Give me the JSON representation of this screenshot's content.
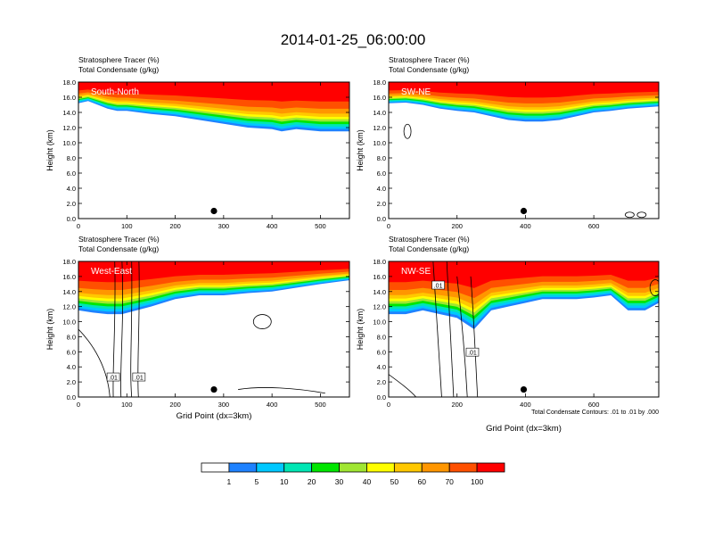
{
  "main_title": "2014-01-25_06:00:00",
  "chart_data": [
    {
      "type": "cross-section",
      "panel_label": "South-North",
      "left_titles": [
        "Stratosphere Tracer   (%)",
        "Total Condensate   (g/kg)"
      ],
      "ylabel": "Height (km)",
      "xlabel": "",
      "ylim": [
        0,
        18
      ],
      "yticks": [
        "0.0",
        "2.0",
        "4.0",
        "6.0",
        "8.0",
        "10.0",
        "12.0",
        "14.0",
        "16.0",
        "18.0"
      ],
      "xlim": [
        0,
        560
      ],
      "xticks": [
        0,
        100,
        200,
        300,
        400,
        500
      ],
      "marker_x": 280,
      "tracer_boundary": {
        "x": [
          0,
          20,
          40,
          60,
          80,
          100,
          150,
          200,
          250,
          300,
          350,
          400,
          420,
          450,
          500,
          540,
          560
        ],
        "y": [
          15.2,
          15.5,
          15.0,
          14.5,
          14.2,
          14.2,
          13.8,
          13.5,
          13.0,
          12.5,
          12.0,
          11.8,
          11.5,
          11.8,
          11.5,
          11.5,
          11.5
        ]
      },
      "contour_labels": []
    },
    {
      "type": "cross-section",
      "panel_label": "SW-NE",
      "left_titles": [
        "Stratosphere Tracer   (%)",
        "Total Condensate   (g/kg)"
      ],
      "ylabel": "Height (km)",
      "xlabel": "",
      "ylim": [
        0,
        18
      ],
      "yticks": [
        "0.0",
        "2.0",
        "4.0",
        "6.0",
        "8.0",
        "10.0",
        "12.0",
        "14.0",
        "16.0",
        "18.0"
      ],
      "xlim": [
        0,
        790
      ],
      "xticks": [
        0,
        200,
        400,
        600
      ],
      "marker_x": 395,
      "tracer_boundary": {
        "x": [
          0,
          50,
          100,
          150,
          200,
          250,
          300,
          350,
          400,
          450,
          500,
          550,
          600,
          650,
          700,
          790
        ],
        "y": [
          15.2,
          15.3,
          15.0,
          14.5,
          14.2,
          14.0,
          13.5,
          13.0,
          12.8,
          12.8,
          13.0,
          13.5,
          14.0,
          14.2,
          14.5,
          14.8
        ]
      },
      "contour_labels": []
    },
    {
      "type": "cross-section",
      "panel_label": "West-East",
      "left_titles": [
        "Stratosphere Tracer   (%)",
        "Total Condensate   (g/kg)"
      ],
      "ylabel": "Height (km)",
      "xlabel": "Grid Point (dx=3km)",
      "ylim": [
        0,
        18
      ],
      "yticks": [
        "0.0",
        "2.0",
        "4.0",
        "6.0",
        "8.0",
        "10.0",
        "12.0",
        "14.0",
        "16.0",
        "18.0"
      ],
      "xlim": [
        0,
        560
      ],
      "xticks": [
        0,
        100,
        200,
        300,
        400,
        500
      ],
      "marker_x": 280,
      "tracer_boundary": {
        "x": [
          0,
          30,
          60,
          90,
          120,
          150,
          200,
          250,
          300,
          350,
          400,
          450,
          500,
          560
        ],
        "y": [
          11.5,
          11.2,
          11.0,
          11.0,
          11.5,
          12.0,
          13.0,
          13.5,
          13.5,
          13.8,
          14.0,
          14.5,
          15.0,
          15.5
        ]
      },
      "contour_labels": [
        ".01",
        ".01"
      ]
    },
    {
      "type": "cross-section",
      "panel_label": "NW-SE",
      "left_titles": [
        "Stratosphere Tracer   (%)",
        "Total Condensate   (g/kg)"
      ],
      "ylabel": "Height (km)",
      "xlabel": "Grid Point (dx=3km)",
      "ylim": [
        0,
        18
      ],
      "yticks": [
        "0.0",
        "2.0",
        "4.0",
        "6.0",
        "8.0",
        "10.0",
        "12.0",
        "14.0",
        "16.0",
        "18.0"
      ],
      "xlim": [
        0,
        790
      ],
      "xticks": [
        0,
        200,
        400,
        600
      ],
      "marker_x": 395,
      "tracer_boundary": {
        "x": [
          0,
          50,
          100,
          150,
          200,
          250,
          300,
          350,
          400,
          450,
          500,
          550,
          600,
          650,
          700,
          750,
          790
        ],
        "y": [
          11.0,
          11.0,
          11.5,
          11.0,
          10.5,
          9.0,
          11.5,
          12.0,
          12.5,
          13.0,
          13.0,
          13.0,
          13.2,
          13.5,
          11.5,
          11.5,
          12.5
        ]
      },
      "contour_labels": [
        ".01",
        ".01"
      ],
      "note": "Total Condensate Contours: .01 to .01 by .000"
    }
  ],
  "colorbar": {
    "labels": [
      "1",
      "5",
      "10",
      "20",
      "30",
      "40",
      "50",
      "60",
      "70",
      "100"
    ],
    "colors": [
      "#ffffff",
      "#1e82ff",
      "#00c8ff",
      "#00e6b4",
      "#00e600",
      "#a0e632",
      "#ffff00",
      "#ffc800",
      "#ff9600",
      "#ff5000",
      "#ff0000"
    ]
  }
}
